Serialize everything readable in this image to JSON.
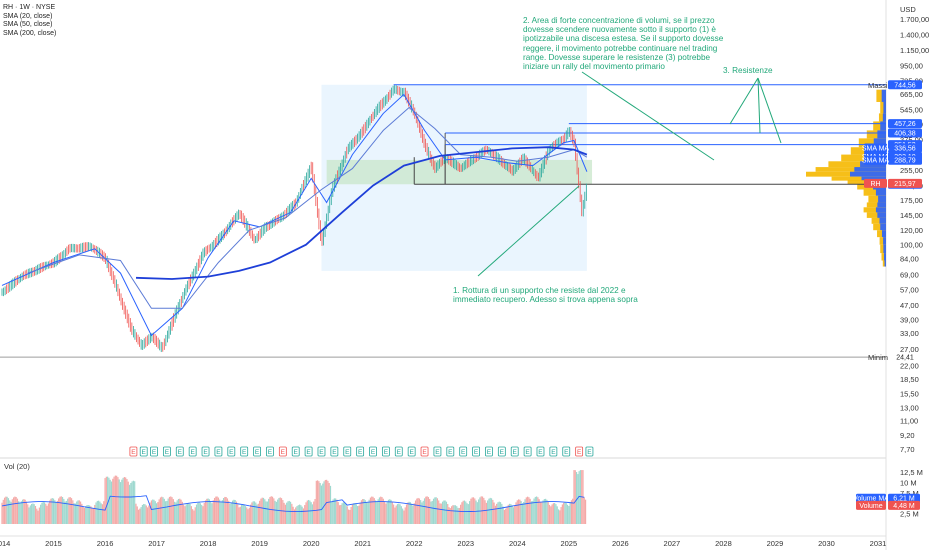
{
  "header": {
    "symbol_line": "RH · 1W · NYSE",
    "indicators": [
      "SMA (20, close)",
      "SMA (50, close)",
      "SMA (200, close)"
    ],
    "currency": "USD",
    "volume_label": "Vol (20)"
  },
  "colors": {
    "accent_blue": "#2962ff",
    "up": "#26a69a",
    "down": "#ef5350",
    "annotation": "#22a87a",
    "volume_profile": "#f5b800",
    "range_box": "#e3f2fd",
    "support_zone": "#c8e6c9"
  },
  "annotations": {
    "note1": "1. Rottura di un supporto che resiste dal 2022 e immediato recupero. Adesso si trova appena sopra",
    "note2": "2. Area di forte concentrazione di volumi, se il prezzo dovesse scendere nuovamente sotto il supporto (1) è ipotizzabile una discesa estesa. Se il supporto dovesse reggere, il movimento potrebbe continuare nel trading range. Dovesse superare le resistenze (3) potrebbe iniziare un rally del movimento primario",
    "note3": "3. Resistenze"
  },
  "earnings_marker": "E",
  "chart_data": {
    "type": "line",
    "title": "RH · 1W · NYSE",
    "y_scale": "log",
    "ylim": [
      6.8,
      2000
    ],
    "x_ticks": [
      "2014",
      "2015",
      "2016",
      "2017",
      "2018",
      "2019",
      "2020",
      "2021",
      "2022",
      "2023",
      "2024",
      "2025",
      "2026",
      "2027",
      "2028",
      "2029",
      "2030",
      "2031"
    ],
    "y_ticks": [
      "1.700,00",
      "1.400,00",
      "1.150,00",
      "950,00",
      "785,00",
      "665,00",
      "545,00",
      "455,00",
      "375,00",
      "255,00",
      "210,00",
      "175,00",
      "145,00",
      "120,00",
      "100,00",
      "84,00",
      "69,00",
      "57,00",
      "47,00",
      "39,00",
      "33,00",
      "27,00",
      "22,00",
      "18,50",
      "15,50",
      "13,00",
      "11,00",
      "9,20",
      "7,70"
    ],
    "price_series": {
      "name": "RH",
      "points": [
        [
          2014.0,
          55
        ],
        [
          2014.3,
          65
        ],
        [
          2014.6,
          72
        ],
        [
          2015.0,
          80
        ],
        [
          2015.3,
          95
        ],
        [
          2015.7,
          98
        ],
        [
          2016.0,
          85
        ],
        [
          2016.2,
          60
        ],
        [
          2016.5,
          35
        ],
        [
          2016.7,
          28
        ],
        [
          2016.9,
          32
        ],
        [
          2017.1,
          27
        ],
        [
          2017.4,
          45
        ],
        [
          2017.6,
          60
        ],
        [
          2017.9,
          90
        ],
        [
          2018.1,
          100
        ],
        [
          2018.4,
          125
        ],
        [
          2018.6,
          150
        ],
        [
          2018.9,
          105
        ],
        [
          2019.1,
          125
        ],
        [
          2019.4,
          140
        ],
        [
          2019.7,
          170
        ],
        [
          2019.9,
          230
        ],
        [
          2020.0,
          270
        ],
        [
          2020.2,
          100
        ],
        [
          2020.4,
          200
        ],
        [
          2020.7,
          330
        ],
        [
          2021.0,
          420
        ],
        [
          2021.3,
          560
        ],
        [
          2021.6,
          700
        ],
        [
          2021.8,
          680
        ],
        [
          2022.0,
          520
        ],
        [
          2022.2,
          350
        ],
        [
          2022.4,
          260
        ],
        [
          2022.6,
          300
        ],
        [
          2022.9,
          260
        ],
        [
          2023.1,
          290
        ],
        [
          2023.4,
          330
        ],
        [
          2023.6,
          300
        ],
        [
          2023.9,
          250
        ],
        [
          2024.1,
          300
        ],
        [
          2024.4,
          230
        ],
        [
          2024.6,
          330
        ],
        [
          2024.9,
          380
        ],
        [
          2025.0,
          420
        ],
        [
          2025.1,
          360
        ],
        [
          2025.2,
          200
        ],
        [
          2025.25,
          150
        ],
        [
          2025.35,
          210
        ]
      ]
    },
    "sma_series": [
      {
        "name": "SMA 20",
        "color": "#2962ff",
        "points": [
          [
            2014.0,
            60
          ],
          [
            2015.0,
            80
          ],
          [
            2015.8,
            95
          ],
          [
            2016.3,
            70
          ],
          [
            2016.9,
            32
          ],
          [
            2017.5,
            45
          ],
          [
            2018.0,
            85
          ],
          [
            2018.5,
            135
          ],
          [
            2019.0,
            125
          ],
          [
            2019.6,
            150
          ],
          [
            2020.0,
            230
          ],
          [
            2020.3,
            170
          ],
          [
            2020.8,
            310
          ],
          [
            2021.4,
            520
          ],
          [
            2021.8,
            660
          ],
          [
            2022.2,
            420
          ],
          [
            2022.6,
            290
          ],
          [
            2023.2,
            300
          ],
          [
            2023.8,
            280
          ],
          [
            2024.3,
            270
          ],
          [
            2024.9,
            360
          ],
          [
            2025.1,
            370
          ],
          [
            2025.35,
            250
          ]
        ]
      },
      {
        "name": "SMA 50",
        "color": "#5c7bd6",
        "points": [
          [
            2014.5,
            70
          ],
          [
            2015.5,
            88
          ],
          [
            2016.3,
            82
          ],
          [
            2016.9,
            45
          ],
          [
            2017.5,
            45
          ],
          [
            2018.2,
            80
          ],
          [
            2018.8,
            120
          ],
          [
            2019.5,
            140
          ],
          [
            2020.2,
            200
          ],
          [
            2020.8,
            260
          ],
          [
            2021.4,
            420
          ],
          [
            2021.9,
            560
          ],
          [
            2022.4,
            430
          ],
          [
            2022.9,
            310
          ],
          [
            2023.5,
            300
          ],
          [
            2024.0,
            285
          ],
          [
            2024.6,
            300
          ],
          [
            2025.1,
            330
          ],
          [
            2025.35,
            300
          ]
        ]
      },
      {
        "name": "SMA 200",
        "color": "#1e3fd8",
        "points": [
          [
            2016.6,
            66
          ],
          [
            2017.3,
            65
          ],
          [
            2018.0,
            67
          ],
          [
            2018.6,
            72
          ],
          [
            2019.2,
            80
          ],
          [
            2019.9,
            100
          ],
          [
            2020.6,
            150
          ],
          [
            2021.2,
            210
          ],
          [
            2021.8,
            270
          ],
          [
            2022.5,
            305
          ],
          [
            2023.2,
            320
          ],
          [
            2023.9,
            335
          ],
          [
            2024.6,
            340
          ],
          [
            2025.1,
            330
          ],
          [
            2025.35,
            310
          ]
        ]
      }
    ],
    "horizontal_levels": [
      {
        "label": "Massimo",
        "value": 744.56,
        "tag": "744,56"
      },
      {
        "label": "Minimo",
        "value": 24.41,
        "tag": "24,41"
      }
    ],
    "resistances": [
      {
        "value": 457.26,
        "tag": "457,26"
      },
      {
        "value": 406.38,
        "tag": "406,38"
      },
      {
        "value": 351.53,
        "tag": "351,53"
      }
    ],
    "support": {
      "value": 213.56,
      "tag": "213,56"
    },
    "price_tags": [
      {
        "label": "SMA MA",
        "value": 336.56,
        "tag": "336,56"
      },
      {
        "label": "SMA MA",
        "value": 303.1,
        "tag": "303,10"
      },
      {
        "label": "SMA MA",
        "value": 288.79,
        "tag": "288,79"
      },
      {
        "label": "RH",
        "value": 215.97,
        "tag": "215,97"
      }
    ],
    "volume": {
      "y_ticks": [
        "12,5 M",
        "10 M",
        "7,5 M",
        "5 M",
        "2,5 M"
      ],
      "ylim": [
        0,
        13.5
      ],
      "tags": [
        {
          "label": "Volume MA",
          "value": 6.21,
          "tag": "6,21 M"
        },
        {
          "label": "Volume",
          "value": 4.48,
          "tag": "4,48 M"
        }
      ]
    }
  }
}
